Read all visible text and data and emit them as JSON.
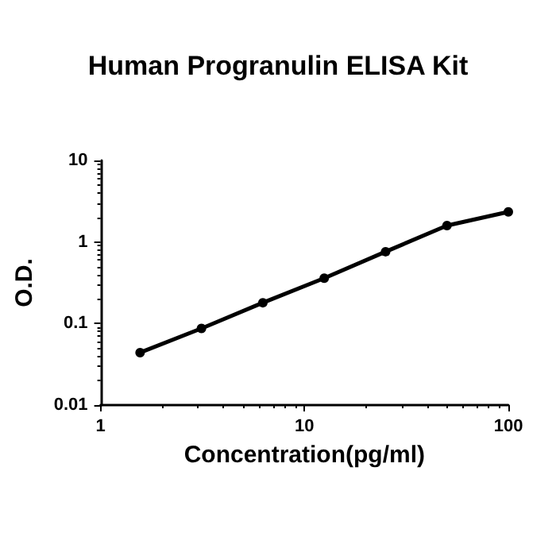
{
  "chart_data": {
    "type": "line",
    "title": "Human Progranulin ELISA Kit",
    "xlabel": "Concentration(pg/ml)",
    "ylabel": "O.D.",
    "log": "xy",
    "x": [
      1.5625,
      3.125,
      6.25,
      12.5,
      25,
      50,
      100
    ],
    "series": [
      {
        "color": "#000000",
        "values": [
          0.044,
          0.087,
          0.18,
          0.36,
          0.76,
          1.59,
          2.34
        ]
      }
    ],
    "xlim": [
      1,
      100
    ],
    "xticks": [
      1,
      10,
      100
    ],
    "ylim": [
      0.01,
      10
    ],
    "yticks": [
      0.01,
      0.1,
      1,
      10
    ],
    "grid": false,
    "marker": "circle",
    "line_style": "solid"
  }
}
